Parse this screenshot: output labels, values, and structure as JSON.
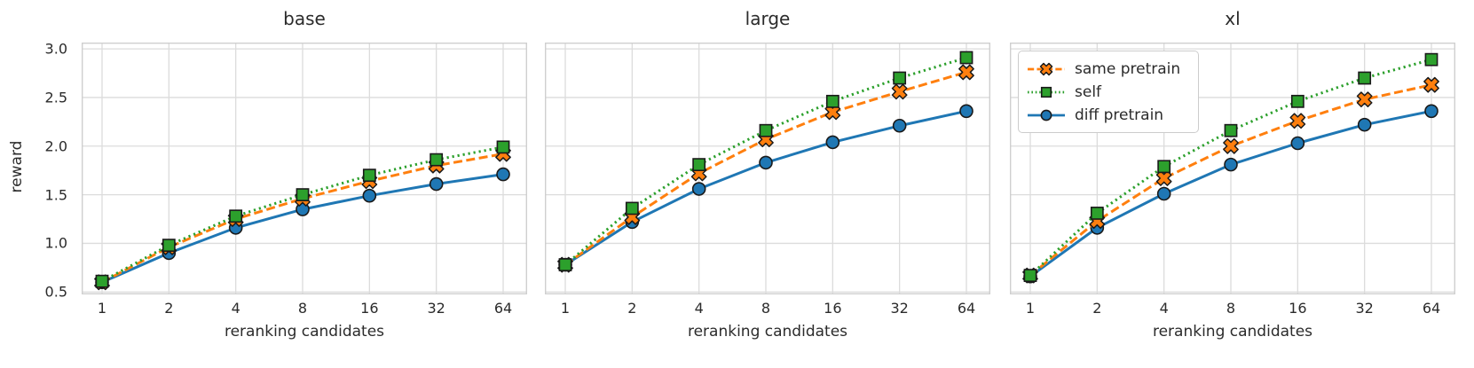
{
  "figure": {
    "ylabel": "reward",
    "xlabel": "reranking candidates",
    "background_color": "#ffffff",
    "grid_color": "#dcdcdc",
    "spine_color": "#cfcfcf",
    "text_color": "#2b2b2b",
    "marker_edge_color": "#1a1a1a"
  },
  "legend": {
    "location": "upper left of xl panel",
    "entries": [
      {
        "label": "same pretrain",
        "color": "#ff7f0e",
        "linestyle": "dashed",
        "marker": "X"
      },
      {
        "label": "self",
        "color": "#2ca02c",
        "linestyle": "dotted",
        "marker": "square"
      },
      {
        "label": "diff pretrain",
        "color": "#1f77b4",
        "linestyle": "solid",
        "marker": "circle"
      }
    ]
  },
  "chart_data": [
    {
      "type": "line",
      "title": "base",
      "xlabel": "reranking candidates",
      "ylabel": "reward",
      "x_scale": "log2",
      "categories": [
        1,
        2,
        4,
        8,
        16,
        32,
        64
      ],
      "y_ticks": [
        0.5,
        1.0,
        1.5,
        2.0,
        2.5,
        3.0
      ],
      "ylim": [
        0.475,
        3.065
      ],
      "grid": true,
      "series": [
        {
          "name": "same pretrain",
          "color": "#ff7f0e",
          "linestyle": "dashed",
          "marker": "X",
          "zorder": 2,
          "values": [
            0.6,
            0.96,
            1.25,
            1.46,
            1.64,
            1.8,
            1.92
          ]
        },
        {
          "name": "self",
          "color": "#2ca02c",
          "linestyle": "dotted",
          "marker": "square",
          "zorder": 3,
          "values": [
            0.61,
            0.98,
            1.28,
            1.5,
            1.7,
            1.86,
            1.99
          ]
        },
        {
          "name": "diff pretrain",
          "color": "#1f77b4",
          "linestyle": "solid",
          "marker": "circle",
          "zorder": 1,
          "values": [
            0.6,
            0.9,
            1.16,
            1.35,
            1.49,
            1.61,
            1.71
          ]
        }
      ]
    },
    {
      "type": "line",
      "title": "large",
      "xlabel": "reranking candidates",
      "ylabel": "reward",
      "x_scale": "log2",
      "categories": [
        1,
        2,
        4,
        8,
        16,
        32,
        64
      ],
      "y_ticks": [
        0.5,
        1.0,
        1.5,
        2.0,
        2.5,
        3.0
      ],
      "ylim": [
        0.475,
        3.065
      ],
      "grid": true,
      "series": [
        {
          "name": "same pretrain",
          "color": "#ff7f0e",
          "linestyle": "dashed",
          "marker": "X",
          "zorder": 2,
          "values": [
            0.78,
            1.27,
            1.72,
            2.07,
            2.35,
            2.56,
            2.76
          ]
        },
        {
          "name": "self",
          "color": "#2ca02c",
          "linestyle": "dotted",
          "marker": "square",
          "zorder": 3,
          "values": [
            0.78,
            1.36,
            1.81,
            2.16,
            2.46,
            2.7,
            2.91
          ]
        },
        {
          "name": "diff pretrain",
          "color": "#1f77b4",
          "linestyle": "solid",
          "marker": "circle",
          "zorder": 1,
          "values": [
            0.78,
            1.22,
            1.56,
            1.83,
            2.04,
            2.21,
            2.36
          ]
        }
      ]
    },
    {
      "type": "line",
      "title": "xl",
      "xlabel": "reranking candidates",
      "ylabel": "reward",
      "x_scale": "log2",
      "categories": [
        1,
        2,
        4,
        8,
        16,
        32,
        64
      ],
      "y_ticks": [
        0.5,
        1.0,
        1.5,
        2.0,
        2.5,
        3.0
      ],
      "ylim": [
        0.475,
        3.065
      ],
      "grid": true,
      "series": [
        {
          "name": "same pretrain",
          "color": "#ff7f0e",
          "linestyle": "dashed",
          "marker": "X",
          "zorder": 2,
          "values": [
            0.67,
            1.23,
            1.67,
            2.0,
            2.26,
            2.48,
            2.63
          ]
        },
        {
          "name": "self",
          "color": "#2ca02c",
          "linestyle": "dotted",
          "marker": "square",
          "zorder": 3,
          "values": [
            0.67,
            1.31,
            1.79,
            2.16,
            2.46,
            2.7,
            2.89
          ]
        },
        {
          "name": "diff pretrain",
          "color": "#1f77b4",
          "linestyle": "solid",
          "marker": "circle",
          "zorder": 1,
          "values": [
            0.66,
            1.16,
            1.51,
            1.81,
            2.03,
            2.22,
            2.36
          ]
        }
      ]
    }
  ]
}
